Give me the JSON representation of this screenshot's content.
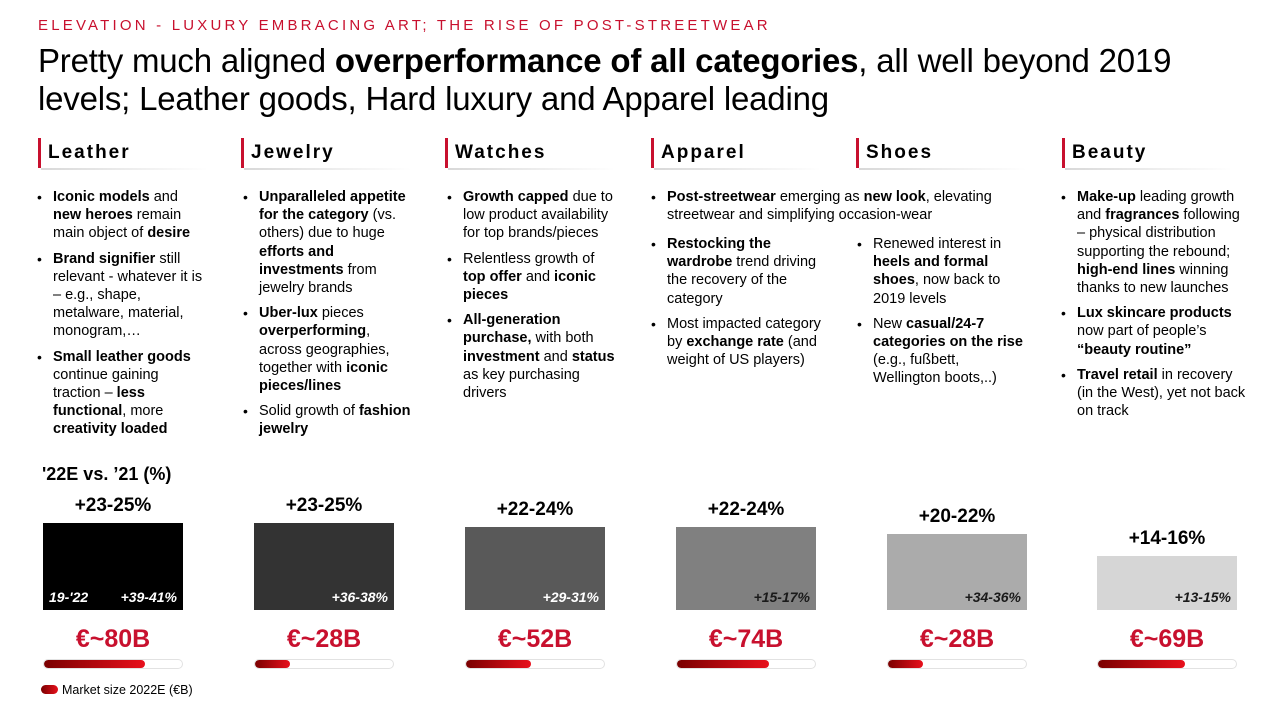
{
  "kicker": "ELEVATION - LUXURY EMBRACING ART; THE RISE OF POST-STREETWEAR",
  "headline": {
    "part1": "Pretty much aligned ",
    "bold": "overperformance of all categories",
    "part2": ", all well beyond 2019 levels; Leather goods, Hard luxury and Apparel leading"
  },
  "categories": [
    {
      "name": "Leather"
    },
    {
      "name": "Jewelry"
    },
    {
      "name": "Watches"
    },
    {
      "name": "Apparel"
    },
    {
      "name": "Shoes"
    },
    {
      "name": "Beauty"
    }
  ],
  "bullets": {
    "leather": [
      [
        [
          "b",
          "Iconic models"
        ],
        [
          "t",
          " and "
        ],
        [
          "b",
          "new heroes"
        ],
        [
          "t",
          " remain main object of "
        ],
        [
          "b",
          "desire"
        ]
      ],
      [
        [
          "b",
          "Brand signifier"
        ],
        [
          "t",
          " still relevant - whatever it is – e.g., shape, metalware, material, monogram,…"
        ]
      ],
      [
        [
          "b",
          "Small leather goods"
        ],
        [
          "t",
          " continue gaining traction – "
        ],
        [
          "b",
          "less functional"
        ],
        [
          "t",
          ", more "
        ],
        [
          "b",
          "creativity loaded"
        ]
      ]
    ],
    "jewelry": [
      [
        [
          "b",
          "Unparalleled appetite for the category"
        ],
        [
          "t",
          " (vs. others) due to huge "
        ],
        [
          "b",
          "efforts and investments"
        ],
        [
          "t",
          " from jewelry brands"
        ]
      ],
      [
        [
          "b",
          "Uber-lux"
        ],
        [
          "t",
          " pieces "
        ],
        [
          "b",
          "overperforming"
        ],
        [
          "t",
          ", across geographies, together with "
        ],
        [
          "b",
          "iconic pieces/lines"
        ]
      ],
      [
        [
          "t",
          "Solid growth of "
        ],
        [
          "b",
          "fashion jewelry"
        ]
      ]
    ],
    "watches": [
      [
        [
          "b",
          "Growth capped"
        ],
        [
          "t",
          " due to low product availability for top brands/pieces"
        ]
      ],
      [
        [
          "t",
          "Relentless growth of "
        ],
        [
          "b",
          "top offer"
        ],
        [
          "t",
          " and "
        ],
        [
          "b",
          "iconic pieces"
        ]
      ],
      [
        [
          "b",
          "All-generation purchase,"
        ],
        [
          "t",
          " with both "
        ],
        [
          "b",
          "investment"
        ],
        [
          "t",
          " and "
        ],
        [
          "b",
          "status"
        ],
        [
          "t",
          " as key purchasing drivers"
        ]
      ]
    ],
    "apparel_top": [
      [
        [
          "b",
          "Post-streetwear"
        ],
        [
          "t",
          " emerging as "
        ],
        [
          "b",
          "new look"
        ],
        [
          "t",
          ", elevating streetwear and simplifying occasion-wear"
        ]
      ]
    ],
    "apparel": [
      [
        [
          "b",
          "Restocking the wardrobe"
        ],
        [
          "t",
          " trend driving the recovery of the category"
        ]
      ],
      [
        [
          "t",
          "Most impacted category by "
        ],
        [
          "b",
          "exchange rate"
        ],
        [
          "t",
          " (and weight of US players)"
        ]
      ]
    ],
    "shoes": [
      [
        [
          "t",
          "Renewed interest in "
        ],
        [
          "b",
          "heels and formal shoes"
        ],
        [
          "t",
          ", now back to 2019 levels"
        ]
      ],
      [
        [
          "t",
          "New "
        ],
        [
          "b",
          "casual/24-7 categories on the rise"
        ],
        [
          "t",
          " (e.g., fußbett, Wellington boots,..)"
        ]
      ]
    ],
    "beauty": [
      [
        [
          "b",
          "Make-up"
        ],
        [
          "t",
          " leading growth and "
        ],
        [
          "b",
          "fragrances"
        ],
        [
          "t",
          " following – physical distribution supporting the rebound; "
        ],
        [
          "b",
          "high-end lines"
        ],
        [
          "t",
          " winning thanks to new launches"
        ]
      ],
      [
        [
          "b",
          "Lux skincare products"
        ],
        [
          "t",
          " now part of people’s "
        ],
        [
          "b",
          "“beauty routine”"
        ]
      ],
      [
        [
          "b",
          "Travel retail"
        ],
        [
          "t",
          " in recovery (in the West), yet not back on track"
        ]
      ]
    ]
  },
  "chart_data": {
    "type": "bar",
    "title": "'22E vs. ’21 (%)",
    "categories": [
      "Leather",
      "Jewelry",
      "Watches",
      "Apparel",
      "Shoes",
      "Beauty"
    ],
    "growth_22_vs_21_labels": [
      "+23-25%",
      "+23-25%",
      "+22-24%",
      "+22-24%",
      "+20-22%",
      "+14-16%"
    ],
    "growth_22_vs_21_mid_pct": [
      24,
      24,
      23,
      23,
      21,
      15
    ],
    "growth_19_22_labels": [
      "+39-41%",
      "+36-38%",
      "+29-31%",
      "+15-17%",
      "+34-36%",
      "+13-15%"
    ],
    "growth_19_22_tag": "19-'22",
    "bar_colors": [
      "#000000",
      "#333333",
      "#595959",
      "#808080",
      "#ababab",
      "#d6d6d6"
    ],
    "inner_label_colors": [
      "#ffffff",
      "#ffffff",
      "#ffffff",
      "#1a1a1a",
      "#1a1a1a",
      "#1a1a1a"
    ],
    "market_size_labels": [
      "€~80B",
      "€~28B",
      "€~52B",
      "€~74B",
      "€~28B",
      "€~69B"
    ],
    "market_size_bn_eur": [
      80,
      28,
      52,
      74,
      28,
      69
    ],
    "legend": "Market size 2022E (€B)",
    "accent_color": "#c8102e"
  }
}
